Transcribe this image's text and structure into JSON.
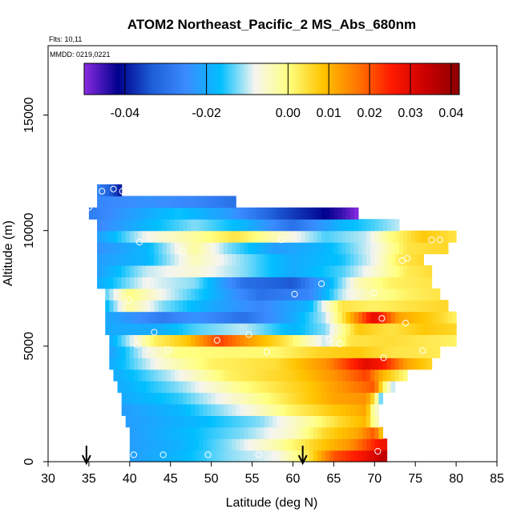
{
  "chart_data": {
    "type": "heatmap",
    "title": "ATOM2 Northeast_Pacific_2 MS_Abs_680nm",
    "note_flights": "Flts: 10,11",
    "note_dates": "MMDD: 0219,0221",
    "xlabel": "Latitude (deg N)",
    "ylabel": "Altitude (m)",
    "xlim": [
      30,
      85
    ],
    "ylim": [
      0,
      18000
    ],
    "xticks": [
      "30",
      "35",
      "40",
      "45",
      "50",
      "55",
      "60",
      "65",
      "70",
      "75",
      "80",
      "85"
    ],
    "yticks": [
      "0",
      "5000",
      "10000",
      "15000"
    ],
    "colorbar": {
      "range": [
        -0.05,
        0.042
      ],
      "tick_values": [
        -0.04,
        -0.02,
        0.0,
        0.01,
        0.02,
        0.03,
        0.04
      ],
      "tick_labels": [
        "-0.04",
        "-0.02",
        "0.00",
        "0.01",
        "0.02",
        "0.03",
        "0.04"
      ],
      "colors": [
        "#8a2be2",
        "#00008b",
        "#1e5fd8",
        "#3a8cff",
        "#00bfff",
        "#f5f5f0",
        "#ffff80",
        "#ffc400",
        "#ff7800",
        "#ff1a00",
        "#cc0000",
        "#8b0000"
      ]
    },
    "grid": false,
    "rows_altitude_m": [
      250,
      750,
      1250,
      1750,
      2250,
      2750,
      3250,
      3750,
      4250,
      4750,
      5250,
      5750,
      6250,
      6750,
      7250,
      7750,
      8250,
      8750,
      9250,
      9750,
      10250,
      10750,
      11250,
      11750
    ],
    "row_lat_extent": [
      [
        40.0,
        71.5
      ],
      [
        40.0,
        71.5
      ],
      [
        40.0,
        71.0
      ],
      [
        39.5,
        70.5
      ],
      [
        39.0,
        70.5
      ],
      [
        39.0,
        71.0
      ],
      [
        38.5,
        72.5
      ],
      [
        38.0,
        74.0
      ],
      [
        37.5,
        77.0
      ],
      [
        37.5,
        78.0
      ],
      [
        37.5,
        80.0
      ],
      [
        37.0,
        80.0
      ],
      [
        37.0,
        80.0
      ],
      [
        37.0,
        79.0
      ],
      [
        37.0,
        78.0
      ],
      [
        36.0,
        77.0
      ],
      [
        36.0,
        77.0
      ],
      [
        36.0,
        76.0
      ],
      [
        36.0,
        79.0
      ],
      [
        36.0,
        80.0
      ],
      [
        36.0,
        73.0
      ],
      [
        35.0,
        68.0
      ],
      [
        36.0,
        53.0
      ],
      [
        36.0,
        39.0
      ]
    ],
    "row_control_points": [
      [
        [
          40,
          -0.022
        ],
        [
          46,
          -0.018
        ],
        [
          52,
          -0.012
        ],
        [
          58,
          -0.008
        ],
        [
          62,
          0.004
        ],
        [
          65,
          0.02
        ],
        [
          69,
          0.028
        ],
        [
          71,
          0.035
        ]
      ],
      [
        [
          40,
          -0.022
        ],
        [
          46,
          -0.019
        ],
        [
          52,
          -0.012
        ],
        [
          58,
          -0.003
        ],
        [
          63,
          0.007
        ],
        [
          67,
          0.014
        ],
        [
          71,
          0.028
        ]
      ],
      [
        [
          40,
          -0.022
        ],
        [
          46,
          -0.018
        ],
        [
          54,
          -0.012
        ],
        [
          60,
          -0.005
        ],
        [
          64,
          0.006
        ],
        [
          68,
          0.012
        ],
        [
          70,
          0.02
        ],
        [
          71,
          0.006
        ]
      ],
      [
        [
          39.5,
          -0.022
        ],
        [
          48,
          -0.018
        ],
        [
          56,
          -0.012
        ],
        [
          62,
          -0.002
        ],
        [
          66,
          0.006
        ],
        [
          69,
          0.01
        ],
        [
          70,
          -0.003
        ]
      ],
      [
        [
          39,
          -0.022
        ],
        [
          46,
          -0.018
        ],
        [
          54,
          -0.008
        ],
        [
          60,
          0.002
        ],
        [
          65,
          0.008
        ],
        [
          69,
          0.012
        ],
        [
          70,
          -0.005
        ]
      ],
      [
        [
          39,
          -0.02
        ],
        [
          46,
          -0.015
        ],
        [
          54,
          -0.004
        ],
        [
          60,
          0.005
        ],
        [
          65,
          0.012
        ],
        [
          69,
          0.014
        ],
        [
          70,
          0.004
        ],
        [
          71,
          -0.018
        ]
      ],
      [
        [
          38.5,
          -0.02
        ],
        [
          46,
          -0.012
        ],
        [
          54,
          0.0
        ],
        [
          62,
          0.008
        ],
        [
          66,
          0.014
        ],
        [
          70,
          0.02
        ],
        [
          71,
          0.003
        ],
        [
          72.5,
          -0.012
        ]
      ],
      [
        [
          38,
          -0.02
        ],
        [
          45,
          -0.01
        ],
        [
          52,
          0.002
        ],
        [
          60,
          0.007
        ],
        [
          65,
          0.014
        ],
        [
          69,
          0.022
        ],
        [
          71,
          0.01
        ],
        [
          74,
          0.0
        ]
      ],
      [
        [
          37.5,
          -0.02
        ],
        [
          44,
          -0.006
        ],
        [
          50,
          0.002
        ],
        [
          58,
          0.005
        ],
        [
          64,
          0.014
        ],
        [
          69,
          0.03
        ],
        [
          71,
          0.026
        ],
        [
          74,
          0.012
        ],
        [
          77,
          0.006
        ]
      ],
      [
        [
          37.5,
          -0.022
        ],
        [
          42,
          -0.008
        ],
        [
          46,
          0.0
        ],
        [
          52,
          0.001
        ],
        [
          58,
          0.001
        ],
        [
          63,
          0.006
        ],
        [
          68,
          0.008
        ],
        [
          72,
          0.004
        ],
        [
          78,
          0.003
        ]
      ],
      [
        [
          37.5,
          -0.02
        ],
        [
          43,
          0.002
        ],
        [
          47,
          0.008
        ],
        [
          51,
          0.022
        ],
        [
          55,
          0.012
        ],
        [
          59,
          0.004
        ],
        [
          64,
          -0.01
        ],
        [
          67,
          0.004
        ],
        [
          72,
          0.005
        ],
        [
          80,
          0.002
        ]
      ],
      [
        [
          37,
          -0.02
        ],
        [
          43,
          -0.02
        ],
        [
          48,
          -0.014
        ],
        [
          54,
          -0.01
        ],
        [
          60,
          -0.018
        ],
        [
          64,
          -0.012
        ],
        [
          68,
          0.008
        ],
        [
          72,
          0.004
        ],
        [
          76,
          0.008
        ],
        [
          80,
          0.006
        ]
      ],
      [
        [
          37,
          -0.02
        ],
        [
          44,
          -0.028
        ],
        [
          48,
          -0.024
        ],
        [
          54,
          -0.03
        ],
        [
          60,
          -0.02
        ],
        [
          64,
          -0.01
        ],
        [
          67,
          0.01
        ],
        [
          70,
          0.03
        ],
        [
          73,
          0.012
        ],
        [
          78,
          0.006
        ],
        [
          80,
          0.002
        ]
      ],
      [
        [
          37,
          -0.018
        ],
        [
          40,
          -0.002
        ],
        [
          44,
          -0.012
        ],
        [
          50,
          -0.02
        ],
        [
          56,
          -0.026
        ],
        [
          62,
          -0.018
        ],
        [
          66,
          0.004
        ],
        [
          70,
          0.002
        ],
        [
          74,
          0.004
        ],
        [
          79,
          0.006
        ]
      ],
      [
        [
          37,
          -0.014
        ],
        [
          40,
          0.0
        ],
        [
          44,
          -0.008
        ],
        [
          50,
          -0.018
        ],
        [
          56,
          -0.03
        ],
        [
          62,
          -0.026
        ],
        [
          66,
          -0.01
        ],
        [
          70,
          -0.002
        ],
        [
          74,
          0.002
        ],
        [
          78,
          0.004
        ]
      ],
      [
        [
          36,
          -0.02
        ],
        [
          42,
          -0.008
        ],
        [
          48,
          -0.012
        ],
        [
          54,
          -0.03
        ],
        [
          60,
          -0.034
        ],
        [
          64,
          -0.02
        ],
        [
          68,
          -0.004
        ],
        [
          72,
          0.002
        ],
        [
          77,
          0.004
        ]
      ],
      [
        [
          36,
          -0.022
        ],
        [
          42,
          -0.01
        ],
        [
          48,
          -0.006
        ],
        [
          54,
          -0.012
        ],
        [
          60,
          -0.02
        ],
        [
          66,
          -0.014
        ],
        [
          70,
          -0.006
        ],
        [
          74,
          0.003
        ],
        [
          77,
          0.005
        ]
      ],
      [
        [
          36,
          -0.022
        ],
        [
          42,
          -0.018
        ],
        [
          48,
          -0.004
        ],
        [
          54,
          -0.012
        ],
        [
          60,
          -0.02
        ],
        [
          66,
          -0.016
        ],
        [
          70,
          -0.008
        ],
        [
          73,
          0.003
        ],
        [
          76,
          0.006
        ]
      ],
      [
        [
          36,
          -0.024
        ],
        [
          42,
          -0.018
        ],
        [
          48,
          -0.002
        ],
        [
          52,
          -0.012
        ],
        [
          58,
          -0.022
        ],
        [
          64,
          -0.018
        ],
        [
          70,
          -0.008
        ],
        [
          74,
          0.004
        ],
        [
          79,
          0.006
        ]
      ],
      [
        [
          36,
          -0.022
        ],
        [
          42,
          -0.008
        ],
        [
          48,
          -0.002
        ],
        [
          53,
          0.004
        ],
        [
          58,
          -0.004
        ],
        [
          64,
          -0.014
        ],
        [
          69,
          -0.01
        ],
        [
          72,
          0.0
        ],
        [
          76,
          0.008
        ],
        [
          80,
          0.004
        ]
      ],
      [
        [
          36,
          -0.026
        ],
        [
          42,
          -0.018
        ],
        [
          48,
          -0.012
        ],
        [
          54,
          -0.018
        ],
        [
          60,
          -0.03
        ],
        [
          66,
          -0.018
        ],
        [
          70,
          -0.014
        ],
        [
          73,
          -0.01
        ]
      ],
      [
        [
          35,
          -0.028
        ],
        [
          40,
          -0.022
        ],
        [
          46,
          -0.016
        ],
        [
          52,
          -0.022
        ],
        [
          58,
          -0.034
        ],
        [
          63,
          -0.04
        ],
        [
          66,
          -0.045
        ],
        [
          68,
          -0.05
        ]
      ],
      [
        [
          36,
          -0.026
        ],
        [
          42,
          -0.024
        ],
        [
          48,
          -0.026
        ],
        [
          53,
          -0.03
        ]
      ],
      [
        [
          36,
          -0.026
        ],
        [
          39,
          -0.04
        ]
      ]
    ],
    "sample_points": [
      [
        40.5,
        300
      ],
      [
        44.1,
        300
      ],
      [
        49.6,
        300
      ],
      [
        55.8,
        300
      ],
      [
        70.4,
        450
      ],
      [
        73.5,
        1800
      ],
      [
        73.8,
        2000
      ],
      [
        71.1,
        4500
      ],
      [
        75.9,
        4800
      ],
      [
        65.7,
        5100
      ],
      [
        64.4,
        5300
      ],
      [
        40.9,
        5050
      ],
      [
        44.7,
        4850
      ],
      [
        50.7,
        5250
      ],
      [
        56.8,
        4750
      ],
      [
        54.6,
        5500
      ],
      [
        43.0,
        5600
      ],
      [
        73.8,
        6000
      ],
      [
        70.9,
        6200
      ],
      [
        39.9,
        7000
      ],
      [
        69.9,
        7300
      ],
      [
        60.2,
        7250
      ],
      [
        63.5,
        7700
      ],
      [
        73.4,
        8700
      ],
      [
        74.0,
        8800
      ],
      [
        46.5,
        9100
      ],
      [
        41.2,
        9500
      ],
      [
        58.6,
        9600
      ],
      [
        77.0,
        9600
      ],
      [
        78.0,
        9600
      ],
      [
        35.0,
        11000
      ],
      [
        36.6,
        11700
      ],
      [
        38.0,
        11800
      ],
      [
        39.1,
        11700
      ]
    ],
    "flight_markers_lat": [
      34.7,
      61.2
    ]
  }
}
